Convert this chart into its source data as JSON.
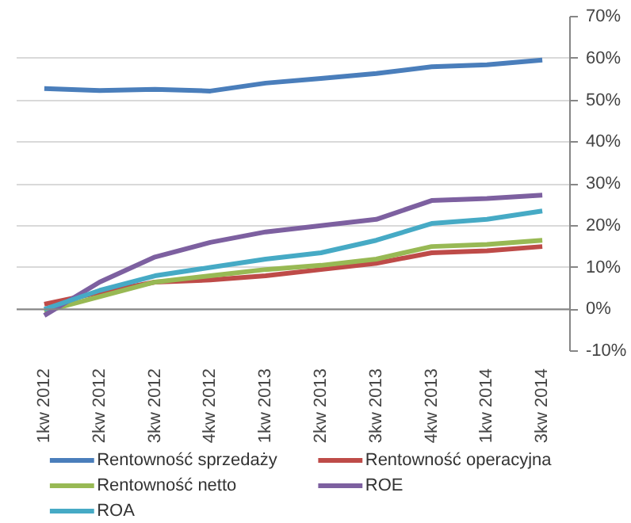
{
  "chart_data": {
    "type": "line",
    "categories": [
      "1kw 2012",
      "2kw 2012",
      "3kw 2012",
      "4kw 2012",
      "1kw 2013",
      "2kw 2013",
      "3kw 2013",
      "4kw 2013",
      "1kw 2014",
      "3kw 2014"
    ],
    "series": [
      {
        "name": "Rentowność sprzedaży",
        "color": "#4a7ebb",
        "values": [
          52.8,
          52.3,
          52.6,
          52.2,
          54.1,
          55.2,
          56.4,
          58.0,
          58.5,
          59.6
        ]
      },
      {
        "name": "Rentowność operacyjna",
        "color": "#be4b48",
        "values": [
          1.2,
          4,
          6.5,
          7,
          8,
          9.5,
          11,
          13.5,
          14,
          15
        ]
      },
      {
        "name": "Rentowność netto",
        "color": "#98b954",
        "values": [
          -0.5,
          3,
          6.5,
          8,
          9.5,
          10.5,
          12,
          15,
          15.5,
          16.5
        ]
      },
      {
        "name": "ROE",
        "color": "#7d60a0",
        "values": [
          -1.5,
          6.5,
          12.5,
          16,
          18.5,
          20,
          21.5,
          26,
          26.5,
          27.3
        ]
      },
      {
        "name": "ROA",
        "color": "#46aac5",
        "values": [
          0,
          4.5,
          8,
          10,
          12,
          13.5,
          16.5,
          20.5,
          21.5,
          23.5
        ]
      }
    ],
    "ylim": [
      -10,
      70
    ],
    "yticks": [
      {
        "value": -10,
        "label": "-10%"
      },
      {
        "value": 0,
        "label": "0%"
      },
      {
        "value": 10,
        "label": "10%"
      },
      {
        "value": 20,
        "label": "20%"
      },
      {
        "value": 30,
        "label": "30%"
      },
      {
        "value": 40,
        "label": "40%"
      },
      {
        "value": 50,
        "label": "50%"
      },
      {
        "value": 60,
        "label": "60%"
      },
      {
        "value": 70,
        "label": "70%"
      }
    ],
    "grid": "y",
    "legend": "bottom",
    "marker": "none",
    "line_style": "solid"
  }
}
